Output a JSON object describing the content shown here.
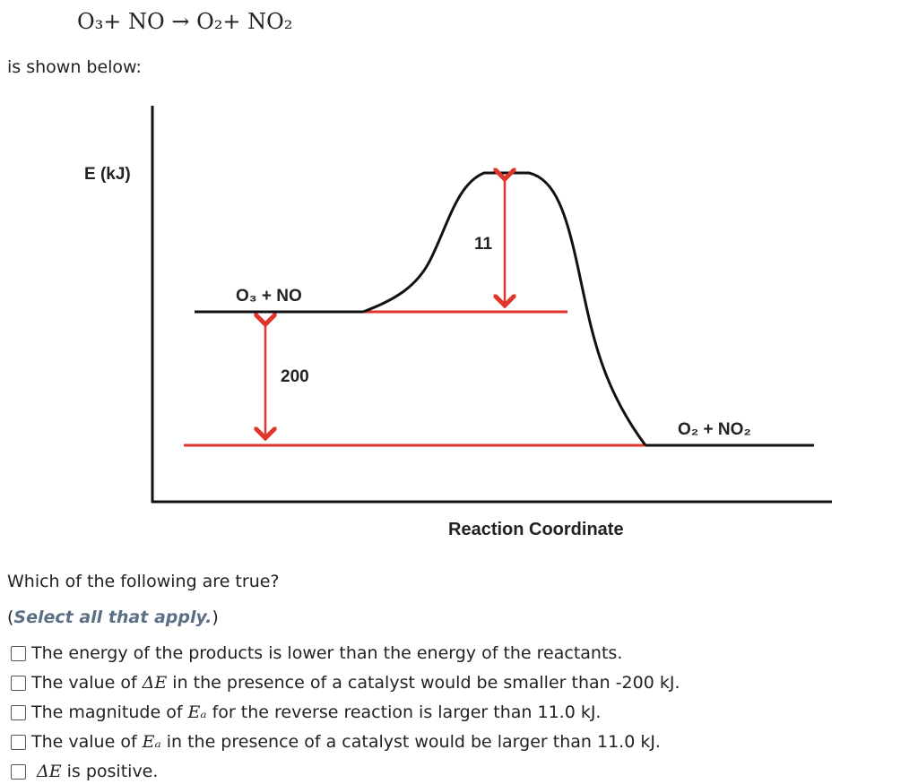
{
  "equation": "O₃+ NO → O₂+ NO₂",
  "intro": "is shown below:",
  "diagram": {
    "y_label": "E (kJ)",
    "x_label": "Reaction Coordinate",
    "reactants": "O₃ + NO",
    "products": "O₂ + NO₂",
    "activation_label": "11",
    "delta_label": "200"
  },
  "question": "Which of the following are true?",
  "instruction": [
    "(",
    "Select all that apply.",
    ")"
  ],
  "options": [
    [
      "The energy of the products is lower than the energy of the reactants."
    ],
    [
      "The value of ",
      "ΔE",
      " in the presence of a catalyst would be smaller than -200 kJ."
    ],
    [
      "The magnitude of ",
      "Eₐ",
      " for the reverse reaction is larger than 11.0 kJ."
    ],
    [
      "The value of ",
      "Eₐ",
      " in the presence of a catalyst would be larger than 11.0 kJ."
    ],
    [
      "ΔE",
      " is positive."
    ]
  ]
}
